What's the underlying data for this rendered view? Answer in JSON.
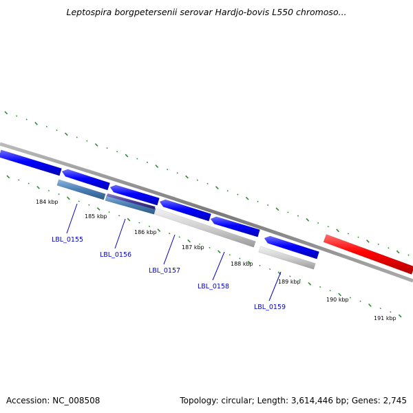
{
  "title": "Leptospira borgpetersenii serovar Hardjo-bovis L550 chromoso...",
  "footer": {
    "accession": "Accession: NC_008508",
    "summary": "Topology: circular; Length: 3,614,446 bp; Genes: 2,745"
  },
  "ticks": [
    "184 kbp",
    "185 kbp",
    "186 kbp",
    "187 kbp",
    "188 kbp",
    "189 kbp",
    "190 kbp",
    "191 kbp"
  ],
  "genes": [
    "LBL_0155",
    "LBL_0156",
    "LBL_0157",
    "LBL_0158",
    "LBL_0159"
  ],
  "colors": {
    "forward_feature": "#0000ff",
    "reverse_feature": "#ff0000",
    "backbone": "#888888",
    "gc_ticks": "#2e8b2e",
    "gene_label": "#0000cc",
    "gene_steelblue": "#4a7fb5",
    "gene_purple": "#4b3b9a",
    "gene_grey": "#c8c8c8"
  }
}
